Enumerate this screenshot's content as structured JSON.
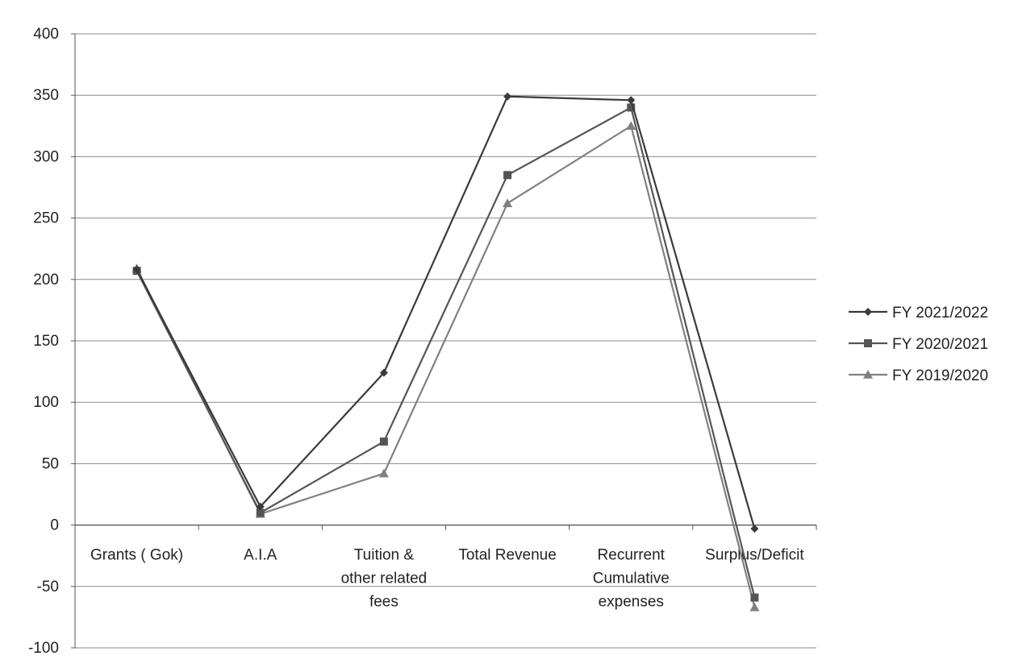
{
  "chart_data": {
    "type": "line",
    "title": "",
    "xlabel": "",
    "ylabel": "",
    "categories": [
      "Grants ( Gok)",
      "A.I.A",
      "Tuition & other related fees",
      "Total Revenue",
      "Recurrent Cumulative expenses",
      "Surplus/Deficit"
    ],
    "category_lines": [
      [
        "Grants ( Gok)"
      ],
      [
        "A.I.A"
      ],
      [
        "Tuition &",
        "other related",
        "fees"
      ],
      [
        "Total Revenue"
      ],
      [
        "Recurrent",
        "Cumulative",
        "expenses"
      ],
      [
        "Surplus/Deficit"
      ]
    ],
    "ylim": [
      -100,
      400
    ],
    "yticks": [
      400,
      350,
      300,
      250,
      200,
      150,
      100,
      50,
      0,
      -50,
      -100
    ],
    "grid": true,
    "legend_position": "right",
    "series": [
      {
        "name": "FY 2021/2022",
        "marker": "diamond",
        "color": "#3a3a3a",
        "values": [
          208,
          15,
          124,
          349,
          346,
          -3
        ]
      },
      {
        "name": "FY 2020/2021",
        "marker": "square",
        "color": "#555555",
        "values": [
          207,
          10,
          68,
          285,
          340,
          -59
        ]
      },
      {
        "name": "FY 2019/2020",
        "marker": "triangle",
        "color": "#808080",
        "values": [
          209,
          9,
          42,
          262,
          325,
          -67
        ]
      }
    ]
  }
}
